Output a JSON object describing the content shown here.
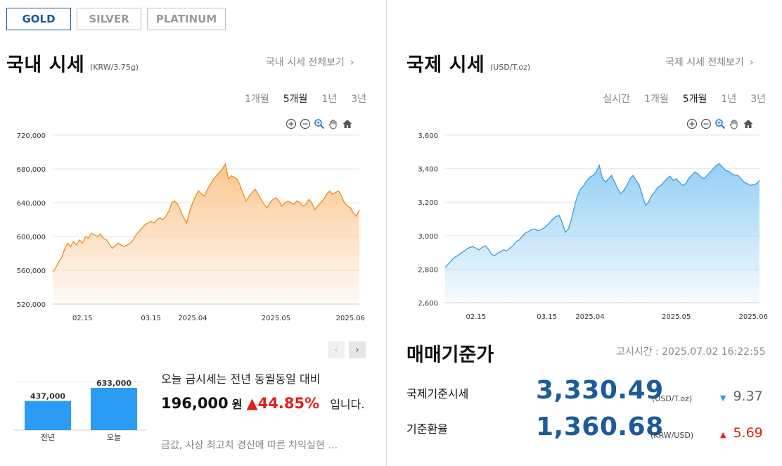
{
  "metal_tabs": [
    "GOLD",
    "SILVER",
    "PLATINUM"
  ],
  "domestic": {
    "title": "국내 시세",
    "unit": "(KRW/3.75g)",
    "more": "국내 시세 전체보기",
    "periods": [
      "1개월",
      "5개월",
      "1년",
      "3년"
    ],
    "active_period": "5개월"
  },
  "international": {
    "title": "국제 시세",
    "unit": "(USD/T.oz)",
    "more": "국제 시세 전체보기",
    "periods": [
      "실시간",
      "1개월",
      "5개월",
      "1년",
      "3년"
    ],
    "active_period": "5개월"
  },
  "toolbar_icons": [
    "zoom-in-icon",
    "zoom-out-icon",
    "magnifier-icon",
    "pan-hand-icon",
    "home-icon"
  ],
  "colors": {
    "domestic_line": "#ef8a17",
    "domestic_fill": "#fbc48c",
    "international_line": "#3a9be3",
    "international_fill": "#8ecdf5",
    "bar": "#2b9bf4",
    "accent_blue": "#1b5b97",
    "up_red": "#e0201b",
    "down_blue": "#2b9bf4"
  },
  "comparison": {
    "line1": "오늘 금시세는 전년 동월동일 대비",
    "diff_value": "196,000",
    "diff_unit": "원",
    "arrow": "▲",
    "percent": "44.85%",
    "suffix": "입니다.",
    "news": "금값, 사상 최고치 경신에 따른 차익실현 …"
  },
  "standard": {
    "title": "매매기준가",
    "notice_time": "고시시간 : 2025.07.02 16:22:55",
    "rows": [
      {
        "label": "국제기준시세",
        "value": "3,330.49",
        "unit": "(USD/T.oz)",
        "direction": "down",
        "arrow": "▼",
        "change": "9.37"
      },
      {
        "label": "기준환율",
        "value": "1,360.68",
        "unit": "(KRW/USD)",
        "direction": "up",
        "arrow": "▲",
        "change": "5.69"
      }
    ]
  },
  "chart_data": [
    {
      "type": "area",
      "ylim": [
        520000,
        720000
      ],
      "y_ticks": [
        520000,
        560000,
        600000,
        640000,
        680000,
        720000
      ],
      "y_tick_labels": [
        "520,000",
        "560,000",
        "600,000",
        "640,000",
        "680,000",
        "720,000"
      ],
      "x_tick_labels": [
        "02.15",
        "03.15",
        "2025.04",
        "2025.05",
        "2025.06"
      ],
      "x_tick_index": [
        10,
        33,
        47,
        75,
        100
      ],
      "grid": true,
      "series": [
        {
          "values": [
            558000,
            563000,
            570000,
            575000,
            585000,
            592000,
            588000,
            594000,
            590000,
            596000,
            592000,
            600000,
            598000,
            604000,
            602000,
            600000,
            603000,
            598000,
            596000,
            591000,
            586000,
            589000,
            592000,
            590000,
            588000,
            590000,
            592000,
            596000,
            602000,
            606000,
            610000,
            614000,
            616000,
            618000,
            616000,
            620000,
            622000,
            620000,
            624000,
            630000,
            640000,
            642000,
            638000,
            630000,
            622000,
            616000,
            630000,
            640000,
            648000,
            654000,
            650000,
            648000,
            656000,
            662000,
            668000,
            672000,
            676000,
            680000,
            686000,
            668000,
            672000,
            670000,
            668000,
            660000,
            650000,
            642000,
            648000,
            652000,
            656000,
            650000,
            644000,
            638000,
            634000,
            640000,
            644000,
            646000,
            642000,
            636000,
            640000,
            642000,
            640000,
            638000,
            642000,
            640000,
            636000,
            638000,
            644000,
            640000,
            632000,
            636000,
            640000,
            644000,
            650000,
            654000,
            650000,
            652000,
            654000,
            648000,
            640000,
            636000,
            634000,
            628000,
            624000,
            632000
          ]
        }
      ]
    },
    {
      "type": "area",
      "ylim": [
        2600,
        3600
      ],
      "y_ticks": [
        2600,
        2800,
        3000,
        3200,
        3400,
        3600
      ],
      "y_tick_labels": [
        "2,600",
        "2,800",
        "3,000",
        "3,200",
        "3,400",
        "3,600"
      ],
      "x_tick_labels": [
        "02.15",
        "03.15",
        "2025.04",
        "2025.05",
        "2025.06"
      ],
      "x_tick_index": [
        10,
        33,
        47,
        75,
        100
      ],
      "grid": true,
      "series": [
        {
          "values": [
            2810,
            2830,
            2850,
            2870,
            2880,
            2895,
            2905,
            2920,
            2930,
            2935,
            2925,
            2915,
            2930,
            2940,
            2920,
            2890,
            2880,
            2895,
            2905,
            2915,
            2910,
            2925,
            2940,
            2965,
            2975,
            2995,
            3015,
            3025,
            3035,
            3040,
            3030,
            3035,
            3045,
            3060,
            3080,
            3100,
            3115,
            3120,
            3080,
            3020,
            3040,
            3100,
            3180,
            3240,
            3280,
            3300,
            3330,
            3350,
            3360,
            3380,
            3420,
            3345,
            3320,
            3340,
            3360,
            3320,
            3280,
            3250,
            3270,
            3300,
            3340,
            3360,
            3330,
            3300,
            3240,
            3180,
            3200,
            3240,
            3260,
            3290,
            3300,
            3320,
            3340,
            3355,
            3330,
            3340,
            3320,
            3300,
            3310,
            3340,
            3360,
            3380,
            3370,
            3350,
            3340,
            3360,
            3380,
            3400,
            3420,
            3430,
            3410,
            3390,
            3385,
            3370,
            3360,
            3360,
            3340,
            3320,
            3310,
            3300,
            3305,
            3310,
            3330
          ]
        }
      ]
    },
    {
      "type": "bar",
      "categories": [
        "전년",
        "오늘"
      ],
      "values": [
        437000,
        633000
      ],
      "value_labels": [
        "437,000",
        "633,000"
      ]
    }
  ]
}
